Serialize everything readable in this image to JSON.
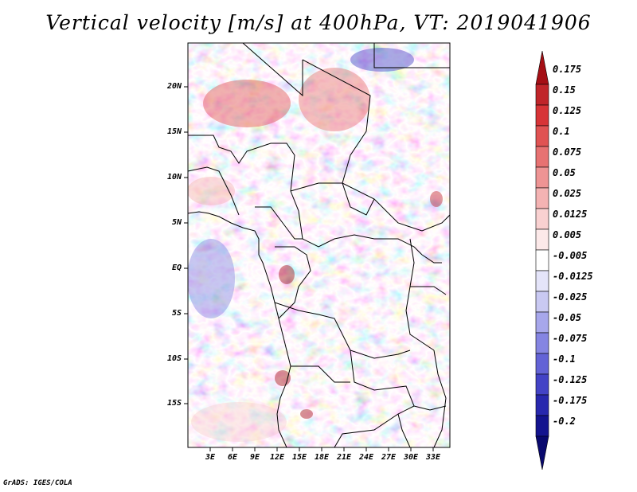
{
  "title": "Vertical velocity [m/s] at 400hPa, VT: 2019041906",
  "credit": "GrADS: IGES/COLA",
  "map": {
    "variable": "Vertical velocity",
    "units": "m/s",
    "level": "400hPa",
    "valid_time": "2019041906",
    "lat_ticks": [
      "20N",
      "15N",
      "10N",
      "5N",
      "EQ",
      "5S",
      "10S",
      "15S"
    ],
    "lon_ticks": [
      "3E",
      "6E",
      "9E",
      "12E",
      "15E",
      "18E",
      "21E",
      "24E",
      "27E",
      "30E",
      "33E"
    ]
  },
  "colorbar": {
    "labels": [
      "0.175",
      "0.15",
      "0.125",
      "0.1",
      "0.075",
      "0.05",
      "0.025",
      "0.0125",
      "0.005",
      "-0.005",
      "-0.0125",
      "-0.025",
      "-0.05",
      "-0.075",
      "-0.1",
      "-0.125",
      "-0.175",
      "-0.2"
    ],
    "colors": [
      "#a50f15",
      "#c0252a",
      "#d73437",
      "#e05353",
      "#e77272",
      "#ee9494",
      "#f4b3b3",
      "#f9d1d1",
      "#fce9e9",
      "#ffffff",
      "#e4e4f9",
      "#c9c9f2",
      "#a7a7eb",
      "#8585e2",
      "#6363d6",
      "#4343c6",
      "#2828ae",
      "#14148f",
      "#09096e"
    ]
  }
}
